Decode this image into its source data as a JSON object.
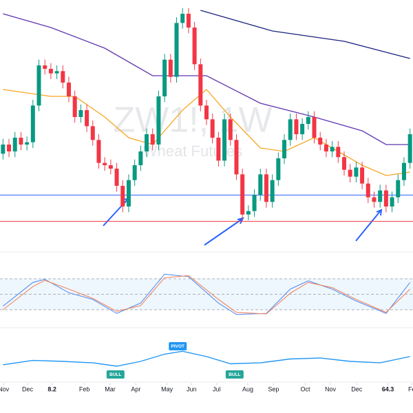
{
  "chart_data": {
    "type": "candlestick",
    "watermark": "ZW1!, 1W",
    "watermark_subtitle": "Wheat Futures",
    "xlim": [
      -0.5,
      68.5
    ],
    "ylim": [
      528,
      732
    ],
    "xticks": [
      {
        "value": 0.1,
        "label": "Nov"
      },
      {
        "value": 4.1,
        "label": "Dec"
      },
      8.2,
      {
        "value": 13.6,
        "label": "Feb"
      },
      {
        "value": 17.9,
        "label": "Mar"
      },
      {
        "value": 22.2,
        "label": "Apr"
      },
      {
        "value": 27.4,
        "label": "May"
      },
      {
        "value": 31.5,
        "label": "Jun"
      },
      {
        "value": 35.7,
        "label": "Jul"
      },
      {
        "value": 40.9,
        "label": "Aug"
      },
      {
        "value": 45.2,
        "label": "Sep"
      },
      {
        "value": 50.5,
        "label": "Oct"
      },
      {
        "value": 54.7,
        "label": "Nov"
      },
      {
        "value": 59.1,
        "label": "Dec"
      },
      64.3,
      {
        "value": 68.3,
        "label": "Fe"
      }
    ],
    "up_color": "#089981",
    "down_color": "#f23645",
    "open": [
      598,
      606,
      600,
      612,
      606,
      608,
      640,
      675,
      672,
      668,
      670,
      660,
      648,
      630,
      636,
      622,
      610,
      590,
      588,
      585,
      570,
      552,
      575,
      588,
      600,
      615,
      606,
      648,
      680,
      665,
      712,
      720,
      708,
      676,
      640,
      628,
      612,
      592,
      628,
      610,
      580,
      545,
      548,
      562,
      580,
      556,
      575,
      594,
      610,
      628,
      615,
      624,
      630,
      612,
      606,
      600,
      604,
      595,
      584,
      578,
      586,
      572,
      560,
      556,
      566,
      552,
      560,
      575,
      590
    ],
    "high": [
      611,
      611,
      617,
      617,
      613,
      645,
      680,
      680,
      677,
      675,
      675,
      665,
      653,
      641,
      641,
      627,
      615,
      595,
      593,
      590,
      575,
      580,
      593,
      605,
      620,
      620,
      653,
      685,
      685,
      717,
      725,
      725,
      713,
      681,
      645,
      633,
      617,
      633,
      633,
      615,
      585,
      553,
      567,
      585,
      585,
      580,
      599,
      615,
      633,
      633,
      629,
      635,
      635,
      617,
      611,
      609,
      609,
      600,
      589,
      591,
      591,
      577,
      565,
      571,
      571,
      565,
      580,
      595,
      620
    ],
    "low": [
      593,
      595,
      595,
      601,
      601,
      603,
      635,
      667,
      663,
      663,
      655,
      643,
      625,
      625,
      617,
      605,
      585,
      583,
      580,
      565,
      547,
      547,
      570,
      583,
      595,
      601,
      601,
      643,
      660,
      660,
      707,
      703,
      671,
      635,
      623,
      607,
      587,
      587,
      605,
      575,
      540,
      540,
      543,
      557,
      551,
      551,
      570,
      589,
      605,
      610,
      610,
      619,
      607,
      601,
      595,
      595,
      590,
      579,
      573,
      573,
      567,
      555,
      551,
      551,
      547,
      547,
      555,
      570,
      585
    ],
    "close": [
      606,
      600,
      612,
      606,
      608,
      640,
      675,
      672,
      668,
      670,
      660,
      648,
      630,
      636,
      622,
      610,
      590,
      588,
      585,
      570,
      552,
      575,
      588,
      600,
      615,
      606,
      648,
      680,
      665,
      712,
      720,
      708,
      676,
      640,
      628,
      612,
      592,
      628,
      610,
      580,
      545,
      548,
      562,
      580,
      556,
      575,
      594,
      610,
      628,
      615,
      624,
      630,
      612,
      606,
      600,
      604,
      595,
      584,
      578,
      586,
      572,
      560,
      556,
      566,
      552,
      560,
      575,
      590,
      615
    ],
    "series": [
      {
        "color": "#f5a623",
        "x": [
          0,
          8,
          12,
          17,
          21,
          25,
          30,
          34,
          38,
          43,
          47,
          52,
          56,
          60,
          64,
          68
        ],
        "values": [
          654,
          648,
          648,
          630,
          612,
          606,
          636,
          654,
          630,
          603,
          600,
          612,
          600,
          588,
          579,
          582
        ]
      },
      {
        "color": "#5e35b1",
        "x": [
          0,
          8,
          17,
          25,
          30,
          34,
          43,
          52,
          60,
          64,
          68
        ],
        "values": [
          720,
          708,
          690,
          666,
          666,
          666,
          642,
          630,
          618,
          606,
          606
        ]
      },
      {
        "color": "#1a237e",
        "x": [
          33,
          45,
          57,
          68
        ],
        "values": [
          723,
          705,
          696,
          681
        ]
      }
    ],
    "levels": [
      {
        "value": 562,
        "color": "#2962ff"
      },
      {
        "value": 539,
        "color": "#f23645"
      }
    ],
    "stochastic": {
      "ylim": [
        0,
        100
      ],
      "bands": [
        80,
        50,
        20
      ],
      "series": [
        {
          "color": "#5b8def",
          "x": [
            0,
            5,
            7,
            11,
            15,
            19,
            23,
            27,
            31,
            36,
            39,
            44,
            48,
            51,
            55,
            59,
            64,
            68
          ],
          "values": [
            27,
            73,
            79,
            53,
            40,
            13,
            33,
            89,
            84,
            33,
            11,
            13,
            60,
            76,
            60,
            37,
            13,
            73
          ]
        },
        {
          "color": "#f0865f",
          "x": [
            0,
            5,
            7,
            11,
            15,
            19,
            23,
            27,
            31,
            36,
            39,
            44,
            48,
            51,
            55,
            59,
            64,
            68
          ],
          "values": [
            20,
            65,
            77,
            60,
            42,
            17,
            28,
            82,
            86,
            40,
            15,
            12,
            52,
            73,
            63,
            40,
            15,
            60
          ]
        }
      ]
    },
    "oscillator": {
      "ylim": [
        0,
        100
      ],
      "color": "#2196f3",
      "x": [
        0,
        5,
        10,
        15,
        19,
        23,
        27,
        30,
        34,
        38,
        43,
        48,
        53,
        58,
        63,
        68
      ],
      "values": [
        43,
        52,
        50,
        47,
        40,
        50,
        65,
        71,
        60,
        45,
        47,
        55,
        57,
        50,
        47,
        60
      ],
      "annotations": [
        {
          "x": 18.8,
          "text": "BULL",
          "color": "#26a69a"
        },
        {
          "x": 29.2,
          "text": "PIVOT",
          "color": "#2196f3"
        },
        {
          "x": 38.7,
          "text": "BULL",
          "color": "#26a69a"
        }
      ]
    }
  }
}
